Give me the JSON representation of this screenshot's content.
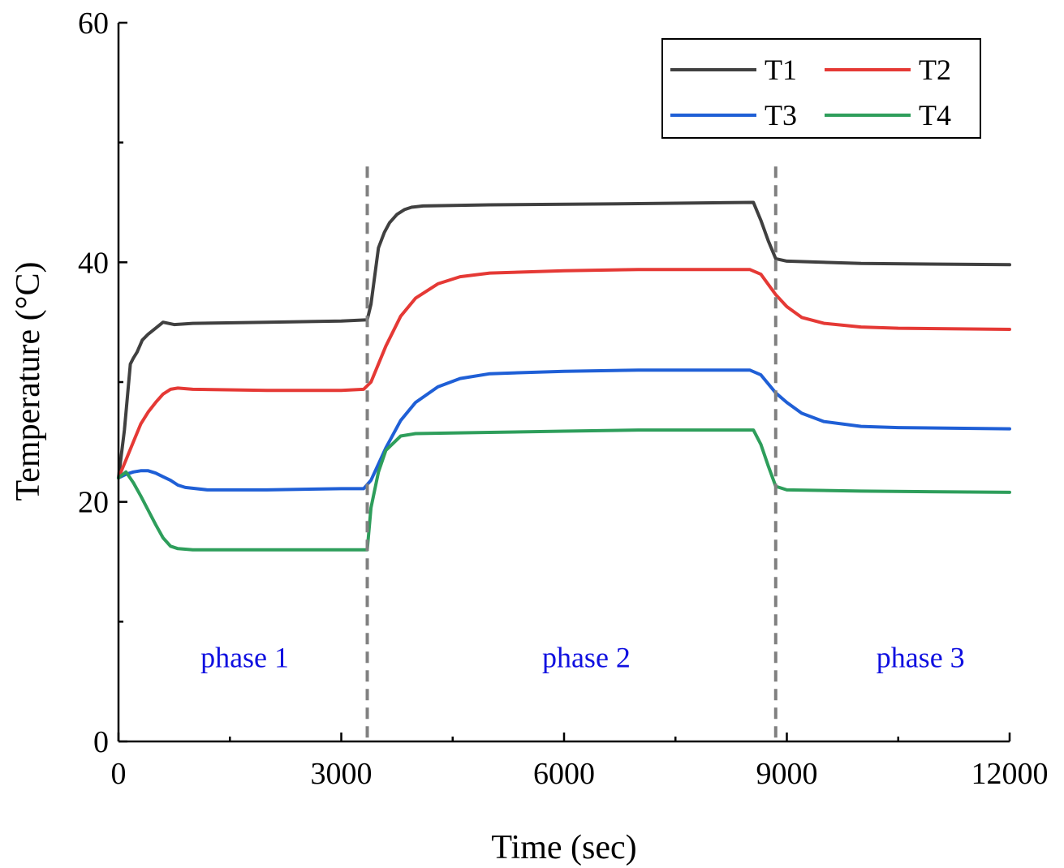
{
  "chart_data": {
    "type": "line",
    "xlabel": "Time (sec)",
    "ylabel": "Temperature (°C)",
    "xlim": [
      0,
      12000
    ],
    "ylim": [
      0,
      60
    ],
    "x_ticks": [
      0,
      3000,
      6000,
      9000,
      12000
    ],
    "x_tick_labels": [
      "0",
      "3000",
      "6000",
      "9000",
      "12000"
    ],
    "x_minor_ticks": [
      1500,
      4500,
      7500,
      10500
    ],
    "y_ticks": [
      0,
      20,
      40,
      60
    ],
    "y_tick_labels": [
      "0",
      "20",
      "40",
      "60"
    ],
    "y_minor_ticks": [
      10,
      30,
      50
    ],
    "grid": false,
    "legend": {
      "placement": "top-right",
      "columns": 2
    },
    "phase_dividers": [
      3350,
      8850
    ],
    "phase_labels": [
      {
        "text": "phase 1",
        "x": 1700,
        "y": 6.2
      },
      {
        "text": "phase 2",
        "x": 6300,
        "y": 6.2
      },
      {
        "text": "phase 3",
        "x": 10800,
        "y": 6.2
      }
    ],
    "colors": {
      "divider": "#808080",
      "phase_text": "#1010e0",
      "axis": "#000000"
    },
    "series": [
      {
        "name": "T1",
        "color": "#404040",
        "x": [
          0,
          80,
          160,
          200,
          250,
          320,
          400,
          500,
          600,
          750,
          1000,
          2000,
          3000,
          3350,
          3400,
          3500,
          3580,
          3650,
          3750,
          3850,
          3950,
          4100,
          5000,
          7000,
          8550,
          8650,
          8750,
          8850,
          9000,
          10000,
          12000
        ],
        "y": [
          22,
          26,
          31.5,
          32,
          32.5,
          33.5,
          34,
          34.5,
          35,
          34.8,
          34.9,
          35,
          35.1,
          35.2,
          36.5,
          41.2,
          42.5,
          43.3,
          44,
          44.4,
          44.6,
          44.7,
          44.8,
          44.9,
          45,
          43.5,
          41.8,
          40.3,
          40.1,
          39.9,
          39.8
        ]
      },
      {
        "name": "T2",
        "color": "#e53935",
        "x": [
          0,
          100,
          200,
          300,
          400,
          500,
          600,
          700,
          800,
          1000,
          2000,
          3000,
          3300,
          3400,
          3600,
          3800,
          4000,
          4300,
          4600,
          5000,
          6000,
          7000,
          8500,
          8650,
          8850,
          9000,
          9200,
          9500,
          10000,
          10500,
          12000
        ],
        "y": [
          22,
          23.5,
          25,
          26.5,
          27.5,
          28.3,
          29,
          29.4,
          29.5,
          29.4,
          29.3,
          29.3,
          29.4,
          30,
          33,
          35.5,
          37,
          38.2,
          38.8,
          39.1,
          39.3,
          39.4,
          39.4,
          39,
          37.3,
          36.3,
          35.4,
          34.9,
          34.6,
          34.5,
          34.4
        ]
      },
      {
        "name": "T3",
        "color": "#1f5fd6",
        "x": [
          0,
          100,
          200,
          300,
          400,
          500,
          600,
          700,
          800,
          900,
          1200,
          2000,
          3000,
          3300,
          3400,
          3600,
          3800,
          4000,
          4300,
          4600,
          5000,
          6000,
          7000,
          8500,
          8650,
          8850,
          9000,
          9200,
          9500,
          10000,
          10500,
          12000
        ],
        "y": [
          22,
          22.3,
          22.5,
          22.6,
          22.6,
          22.4,
          22.1,
          21.8,
          21.4,
          21.2,
          21,
          21,
          21.1,
          21.1,
          21.8,
          24.5,
          26.8,
          28.3,
          29.6,
          30.3,
          30.7,
          30.9,
          31,
          31,
          30.6,
          29.1,
          28.3,
          27.4,
          26.7,
          26.3,
          26.2,
          26.1
        ]
      },
      {
        "name": "T4",
        "color": "#2e9e5b",
        "x": [
          0,
          100,
          200,
          300,
          400,
          500,
          600,
          700,
          800,
          1000,
          2000,
          3000,
          3350,
          3400,
          3500,
          3600,
          3700,
          3800,
          3900,
          4000,
          5000,
          6000,
          7000,
          8550,
          8650,
          8750,
          8850,
          9000,
          10000,
          12000
        ],
        "y": [
          22,
          22.5,
          21.6,
          20.5,
          19.3,
          18.1,
          17,
          16.3,
          16.1,
          16,
          16,
          16,
          16,
          19.5,
          22.5,
          24.3,
          24.9,
          25.5,
          25.6,
          25.7,
          25.8,
          25.9,
          26,
          26,
          24.8,
          23,
          21.3,
          21,
          20.9,
          20.8
        ]
      }
    ]
  }
}
